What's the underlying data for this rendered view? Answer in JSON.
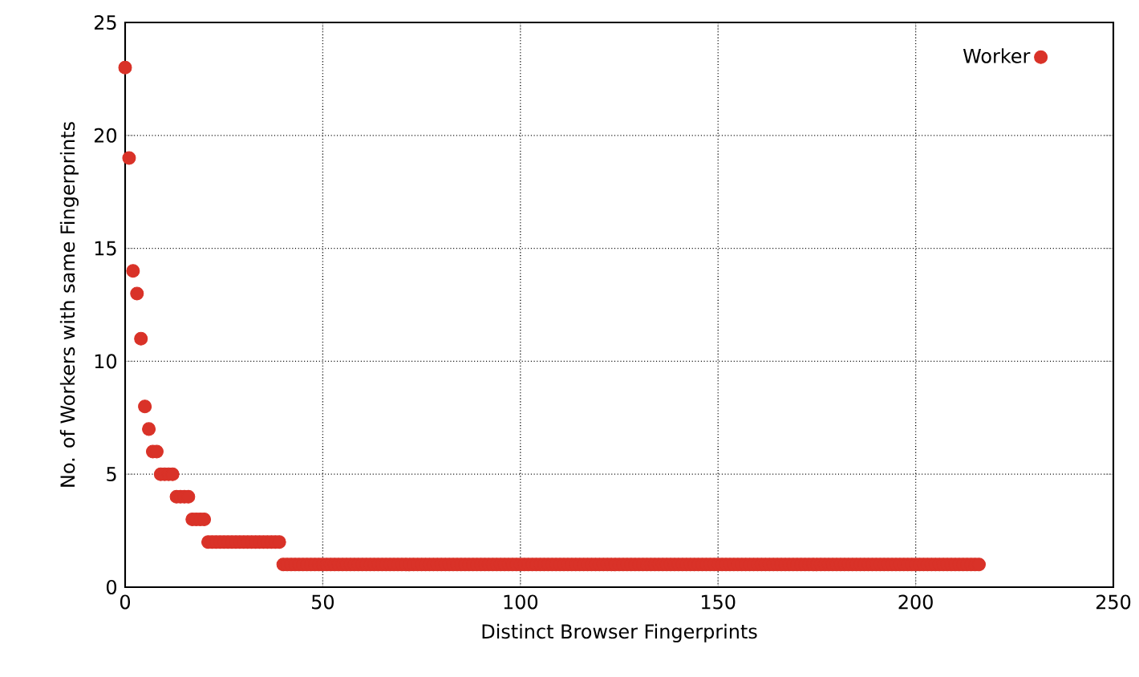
{
  "chart_data": {
    "type": "scatter",
    "xlabel": "Distinct Browser Fingerprints",
    "ylabel": "No. of Workers with same Fingerprints",
    "xlim": [
      0,
      250
    ],
    "ylim": [
      0,
      25
    ],
    "xticks": [
      0,
      50,
      100,
      150,
      200,
      250
    ],
    "yticks": [
      0,
      5,
      10,
      15,
      20,
      25
    ],
    "grid": true,
    "legend": "top right",
    "marker": "circle",
    "series": [
      {
        "name": "Worker",
        "color": "#d93228",
        "x": [
          0,
          1,
          2,
          3,
          4,
          5,
          6,
          7,
          8,
          9,
          10,
          11,
          12,
          13,
          14,
          15,
          16,
          17,
          18,
          19,
          20,
          21,
          22,
          23,
          24,
          25,
          26,
          27,
          28,
          29,
          30,
          31,
          32,
          33,
          34,
          35,
          36,
          37,
          38,
          39,
          40,
          41,
          42,
          43,
          44,
          45,
          46,
          47,
          48,
          49,
          50,
          51,
          52,
          53,
          54,
          55,
          56,
          57,
          58,
          59,
          60,
          61,
          62,
          63,
          64,
          65,
          66,
          67,
          68,
          69,
          70,
          71,
          72,
          73,
          74,
          75,
          76,
          77,
          78,
          79,
          80,
          81,
          82,
          83,
          84,
          85,
          86,
          87,
          88,
          89,
          90,
          91,
          92,
          93,
          94,
          95,
          96,
          97,
          98,
          99,
          100,
          101,
          102,
          103,
          104,
          105,
          106,
          107,
          108,
          109,
          110,
          111,
          112,
          113,
          114,
          115,
          116,
          117,
          118,
          119,
          120,
          121,
          122,
          123,
          124,
          125,
          126,
          127,
          128,
          129,
          130,
          131,
          132,
          133,
          134,
          135,
          136,
          137,
          138,
          139,
          140,
          141,
          142,
          143,
          144,
          145,
          146,
          147,
          148,
          149,
          150,
          151,
          152,
          153,
          154,
          155,
          156,
          157,
          158,
          159,
          160,
          161,
          162,
          163,
          164,
          165,
          166,
          167,
          168,
          169,
          170,
          171,
          172,
          173,
          174,
          175,
          176,
          177,
          178,
          179,
          180,
          181,
          182,
          183,
          184,
          185,
          186,
          187,
          188,
          189,
          190,
          191,
          192,
          193,
          194,
          195,
          196,
          197,
          198,
          199,
          200,
          201,
          202,
          203,
          204,
          205,
          206,
          207,
          208,
          209,
          210,
          211,
          212,
          213,
          214,
          215,
          216
        ],
        "values": [
          23,
          19,
          14,
          13,
          11,
          8,
          7,
          6,
          6,
          5,
          5,
          5,
          5,
          4,
          4,
          4,
          4,
          3,
          3,
          3,
          3,
          2,
          2,
          2,
          2,
          2,
          2,
          2,
          2,
          2,
          2,
          2,
          2,
          2,
          2,
          2,
          2,
          2,
          2,
          2,
          1,
          1,
          1,
          1,
          1,
          1,
          1,
          1,
          1,
          1,
          1,
          1,
          1,
          1,
          1,
          1,
          1,
          1,
          1,
          1,
          1,
          1,
          1,
          1,
          1,
          1,
          1,
          1,
          1,
          1,
          1,
          1,
          1,
          1,
          1,
          1,
          1,
          1,
          1,
          1,
          1,
          1,
          1,
          1,
          1,
          1,
          1,
          1,
          1,
          1,
          1,
          1,
          1,
          1,
          1,
          1,
          1,
          1,
          1,
          1,
          1,
          1,
          1,
          1,
          1,
          1,
          1,
          1,
          1,
          1,
          1,
          1,
          1,
          1,
          1,
          1,
          1,
          1,
          1,
          1,
          1,
          1,
          1,
          1,
          1,
          1,
          1,
          1,
          1,
          1,
          1,
          1,
          1,
          1,
          1,
          1,
          1,
          1,
          1,
          1,
          1,
          1,
          1,
          1,
          1,
          1,
          1,
          1,
          1,
          1,
          1,
          1,
          1,
          1,
          1,
          1,
          1,
          1,
          1,
          1,
          1,
          1,
          1,
          1,
          1,
          1,
          1,
          1,
          1,
          1,
          1,
          1,
          1,
          1,
          1,
          1,
          1,
          1,
          1,
          1,
          1,
          1,
          1,
          1,
          1,
          1,
          1,
          1,
          1,
          1,
          1,
          1,
          1,
          1,
          1,
          1,
          1,
          1,
          1,
          1,
          1,
          1,
          1,
          1,
          1,
          1,
          1,
          1,
          1,
          1,
          1,
          1,
          1,
          1,
          1,
          1,
          1
        ]
      }
    ]
  }
}
